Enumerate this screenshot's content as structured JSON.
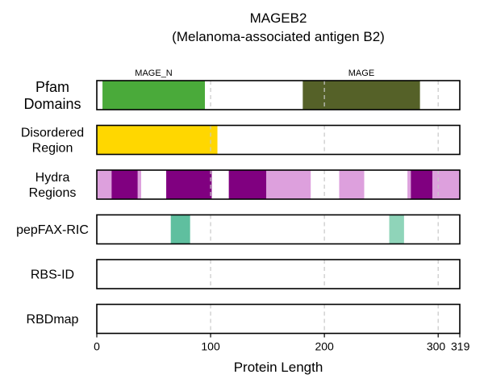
{
  "chart_data": {
    "type": "track",
    "title": "MAGEB2",
    "subtitle": "(Melanoma-associated antigen B2)",
    "xlabel": "Protein Length",
    "xlim": [
      0,
      319
    ],
    "xticks": [
      {
        "value": 0,
        "label": "0"
      },
      {
        "value": 100,
        "label": "100"
      },
      {
        "value": 200,
        "label": "200"
      },
      {
        "value": 300,
        "label": "300"
      },
      {
        "value": 319,
        "label": "319"
      }
    ],
    "gridlines": [
      100,
      200,
      300
    ],
    "tracks": [
      {
        "id": "pfam",
        "label_lines": [
          "Pfam",
          "Domains"
        ],
        "segments": [
          {
            "start": 5,
            "end": 95,
            "color": "#4aaa3a",
            "label": "MAGE_N"
          },
          {
            "start": 181,
            "end": 284,
            "color": "#556128",
            "label": "MAGE"
          }
        ]
      },
      {
        "id": "disordered",
        "label_lines": [
          "Disordered",
          "Region"
        ],
        "segments": [
          {
            "start": 0,
            "end": 106,
            "color": "#ffd700"
          }
        ]
      },
      {
        "id": "hydra",
        "label_lines": [
          "Hydra",
          "Regions"
        ],
        "segments": [
          {
            "start": 0,
            "end": 13,
            "color": "#dda0dd"
          },
          {
            "start": 13,
            "end": 36,
            "color": "#800080"
          },
          {
            "start": 36,
            "end": 39,
            "color": "#dda0dd"
          },
          {
            "start": 61,
            "end": 101,
            "color": "#800080"
          },
          {
            "start": 116,
            "end": 149,
            "color": "#800080"
          },
          {
            "start": 149,
            "end": 188,
            "color": "#dda0dd"
          },
          {
            "start": 213,
            "end": 235,
            "color": "#dda0dd"
          },
          {
            "start": 273,
            "end": 276,
            "color": "#dda0dd"
          },
          {
            "start": 276,
            "end": 295,
            "color": "#800080"
          },
          {
            "start": 295,
            "end": 319,
            "color": "#dda0dd"
          }
        ]
      },
      {
        "id": "pepfax",
        "label_lines": [
          "pepFAX-RIC"
        ],
        "segments": [
          {
            "start": 65,
            "end": 82,
            "color": "#5fbf9f"
          },
          {
            "start": 257,
            "end": 270,
            "color": "#8fd4b9"
          }
        ]
      },
      {
        "id": "rbsid",
        "label_lines": [
          "RBS-ID"
        ],
        "segments": []
      },
      {
        "id": "rbdmap",
        "label_lines": [
          "RBDmap"
        ],
        "segments": []
      }
    ]
  }
}
